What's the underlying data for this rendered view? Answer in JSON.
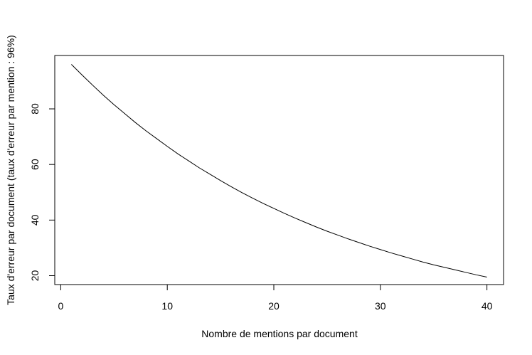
{
  "chart_data": {
    "type": "line",
    "title": "",
    "xlabel": "Nombre de mentions par document",
    "ylabel": "Taux d'erreur par document (taux d'erreur par mention : 96%)",
    "xlim": [
      -0.56,
      41.56
    ],
    "ylim": [
      16.8,
      99.2
    ],
    "x_ticks": [
      0,
      10,
      20,
      30,
      40
    ],
    "y_ticks": [
      20,
      40,
      60,
      80
    ],
    "grid": false,
    "legend": "none",
    "line_color": "#000000",
    "series": [
      {
        "x": [
          1,
          2,
          3,
          4,
          5,
          6,
          7,
          8,
          9,
          10,
          11,
          12,
          13,
          14,
          15,
          16,
          17,
          18,
          19,
          20,
          21,
          22,
          23,
          24,
          25,
          26,
          27,
          28,
          29,
          30,
          31,
          32,
          33,
          34,
          35,
          36,
          37,
          38,
          39,
          40
        ],
        "values": [
          96.0,
          92.2,
          88.5,
          84.9,
          81.5,
          78.3,
          75.1,
          72.1,
          69.3,
          66.5,
          63.8,
          61.3,
          58.8,
          56.5,
          54.2,
          52.0,
          49.9,
          47.9,
          46.0,
          44.2,
          42.4,
          40.7,
          39.1,
          37.5,
          36.0,
          34.6,
          33.2,
          31.9,
          30.6,
          29.4,
          28.2,
          27.1,
          26.0,
          24.9,
          23.9,
          23.0,
          22.1,
          21.2,
          20.3,
          19.5
        ]
      }
    ]
  }
}
